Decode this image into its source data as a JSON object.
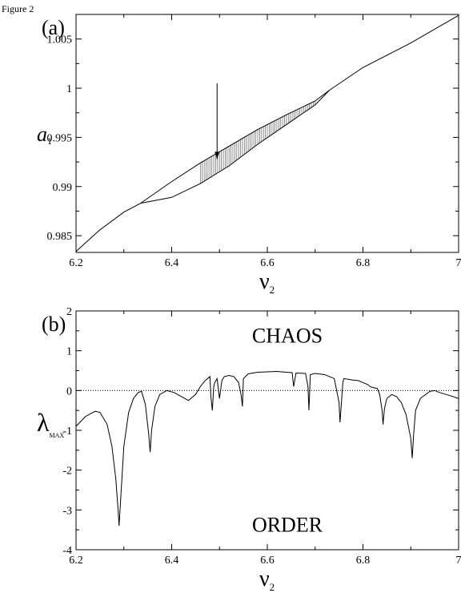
{
  "figure_label": "Figure 2",
  "chart_data": [
    {
      "type": "line",
      "panel_label": "(a)",
      "xlabel_symbol": "ν",
      "xlabel_subscript": "2",
      "ylabel_symbol": "a",
      "ylabel_subscript": "1",
      "xlim": [
        6.2,
        7.0
      ],
      "ylim": [
        0.9833,
        1.0075
      ],
      "xticks": [
        6.2,
        6.4,
        6.6,
        6.8,
        7.0
      ],
      "xtick_labels": [
        "6.2",
        "6.4",
        "6.6",
        "6.8",
        "7"
      ],
      "yticks": [
        0.985,
        0.99,
        0.995,
        1.0,
        1.005
      ],
      "ytick_labels": [
        "0.985",
        "0.99",
        "0.995",
        "1",
        "1.005"
      ],
      "series": [
        {
          "values_x": [
            6.2,
            6.25,
            6.3,
            6.335
          ],
          "values_y": [
            0.9834,
            0.9856,
            0.9874,
            0.9883
          ]
        },
        {
          "values_x": [
            6.335,
            6.4,
            6.46,
            6.52,
            6.58,
            6.64,
            6.7,
            6.73
          ],
          "values_y": [
            0.9883,
            0.9905,
            0.9924,
            0.9941,
            0.9958,
            0.9973,
            0.9987,
            0.9998
          ]
        },
        {
          "values_x": [
            6.335,
            6.4,
            6.46,
            6.52,
            6.58,
            6.64,
            6.7,
            6.73
          ],
          "values_y": [
            0.9883,
            0.9889,
            0.9903,
            0.9921,
            0.9943,
            0.9963,
            0.9983,
            0.9998
          ]
        },
        {
          "values_x": [
            6.73,
            6.8,
            6.9,
            7.0
          ],
          "values_y": [
            0.9998,
            1.0021,
            1.0046,
            1.0074
          ]
        }
      ],
      "arrow": {
        "x": 6.495,
        "y_start": 1.0005,
        "y_end": 0.9928
      }
    },
    {
      "type": "line",
      "panel_label": "(b)",
      "xlabel_symbol": "ν",
      "xlabel_subscript": "2",
      "ylabel_symbol": "λ",
      "ylabel_subscript": "MAX",
      "xlim": [
        6.2,
        7.0
      ],
      "ylim": [
        -4,
        2
      ],
      "xticks": [
        6.2,
        6.4,
        6.6,
        6.8,
        7.0
      ],
      "xtick_labels": [
        "6.2",
        "6.4",
        "6.6",
        "6.8",
        "7"
      ],
      "yticks": [
        -4,
        -3,
        -2,
        -1,
        0,
        1,
        2
      ],
      "ytick_labels": [
        "-4",
        "-3",
        "-2",
        "-1",
        "0",
        "1",
        "2"
      ],
      "annotations": [
        "CHAOS",
        "ORDER"
      ],
      "series": [
        {
          "x": [
            6.2,
            6.22,
            6.24,
            6.25,
            6.265,
            6.275,
            6.283,
            6.288,
            6.29,
            6.293,
            6.3,
            6.31,
            6.32,
            6.33,
            6.337,
            6.345,
            6.352,
            6.355,
            6.358,
            6.365,
            6.375,
            6.39,
            6.405,
            6.42,
            6.435,
            6.45,
            6.46,
            6.47,
            6.475,
            6.48,
            6.482,
            6.485,
            6.488,
            6.49,
            6.495,
            6.5,
            6.505,
            6.51,
            6.52,
            6.53,
            6.54,
            6.545,
            6.548,
            6.55,
            6.56,
            6.58,
            6.6,
            6.62,
            6.64,
            6.652,
            6.655,
            6.66,
            6.68,
            6.685,
            6.687,
            6.69,
            6.7,
            6.72,
            6.73,
            6.74,
            6.75,
            6.752,
            6.755,
            6.758,
            6.76,
            6.77,
            6.78,
            6.79,
            6.8,
            6.81,
            6.815,
            6.82,
            6.83,
            6.835,
            6.84,
            6.842,
            6.845,
            6.85,
            6.86,
            6.87,
            6.88,
            6.89,
            6.9,
            6.903,
            6.906,
            6.91,
            6.92,
            6.94,
            6.95,
            6.96,
            6.98,
            7.0
          ],
          "y": [
            -0.9,
            -0.65,
            -0.52,
            -0.55,
            -0.85,
            -1.4,
            -2.2,
            -3.0,
            -3.4,
            -2.8,
            -1.4,
            -0.55,
            -0.2,
            -0.05,
            -0.02,
            -0.35,
            -1.1,
            -1.55,
            -1.0,
            -0.4,
            -0.1,
            0.0,
            -0.05,
            -0.15,
            -0.25,
            -0.1,
            0.1,
            0.25,
            0.3,
            0.35,
            -0.15,
            -0.5,
            0.1,
            0.2,
            0.3,
            -0.2,
            0.25,
            0.35,
            0.38,
            0.35,
            0.2,
            -0.1,
            -0.4,
            0.3,
            0.42,
            0.46,
            0.47,
            0.48,
            0.46,
            0.45,
            0.1,
            0.44,
            0.43,
            0.1,
            -0.5,
            0.4,
            0.43,
            0.4,
            0.35,
            0.3,
            -0.3,
            -0.8,
            -0.3,
            0.2,
            0.3,
            0.28,
            0.26,
            0.25,
            0.2,
            0.15,
            0.1,
            0.08,
            0.05,
            -0.1,
            -0.5,
            -0.85,
            -0.45,
            -0.2,
            -0.1,
            -0.15,
            -0.3,
            -0.6,
            -1.2,
            -1.7,
            -1.1,
            -0.5,
            -0.2,
            -0.02,
            0.0,
            -0.05,
            -0.12,
            -0.2
          ]
        }
      ],
      "reference_line_y": 0
    }
  ]
}
